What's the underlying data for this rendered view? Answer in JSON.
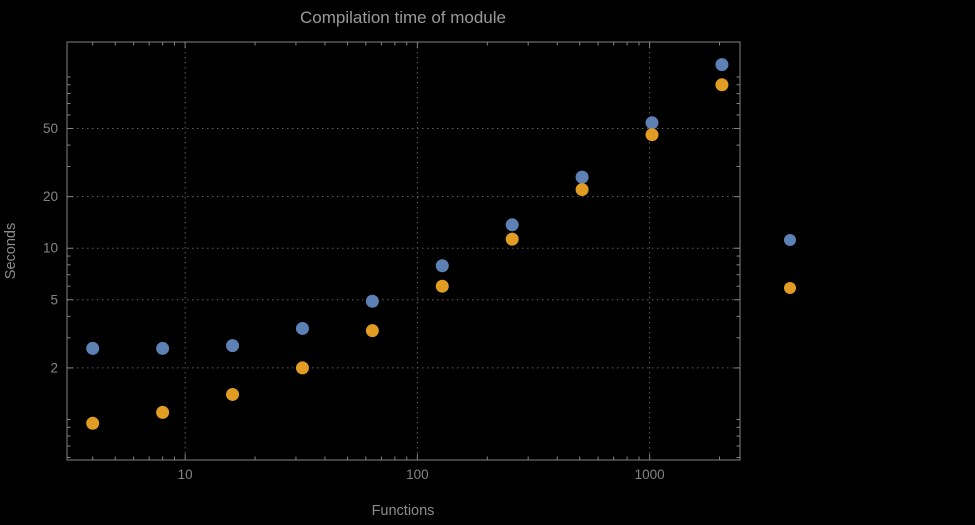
{
  "chart_data": {
    "type": "scatter",
    "title": "Compilation time of module",
    "xlabel": "Functions",
    "ylabel": "Seconds",
    "xscale": "log",
    "yscale": "log",
    "grid": true,
    "x": [
      4,
      8,
      16,
      32,
      64,
      128,
      256,
      512,
      1024,
      2048
    ],
    "series": [
      {
        "name": "series-1-blue",
        "color": "#5E81B5",
        "values": [
          2.6,
          2.6,
          2.7,
          3.4,
          4.9,
          7.9,
          13.7,
          26,
          54,
          118
        ]
      },
      {
        "name": "series-2-orange",
        "color": "#E19C24",
        "values": [
          0.95,
          1.1,
          1.4,
          2.0,
          3.3,
          6.0,
          11.3,
          22,
          46,
          90
        ]
      }
    ],
    "xticks": [
      {
        "v": 10,
        "label": "10"
      },
      {
        "v": 100,
        "label": "100"
      },
      {
        "v": 1000,
        "label": "1000"
      }
    ],
    "yticks": [
      {
        "v": 2,
        "label": "2"
      },
      {
        "v": 5,
        "label": "5"
      },
      {
        "v": 10,
        "label": "10"
      },
      {
        "v": 20,
        "label": "20"
      },
      {
        "v": 50,
        "label": "50"
      }
    ],
    "xlim": [
      3.1,
      2450
    ],
    "ylim": [
      0.58,
      160
    ],
    "legend_markers": [
      "#5E81B5",
      "#E19C24"
    ],
    "colors": {
      "background": "#000000",
      "frame": "#848484",
      "grid": "#5f5f5f",
      "tick_text": "#848484",
      "title_text": "#9a9a9a",
      "axis_text": "#8c8c8c"
    }
  }
}
